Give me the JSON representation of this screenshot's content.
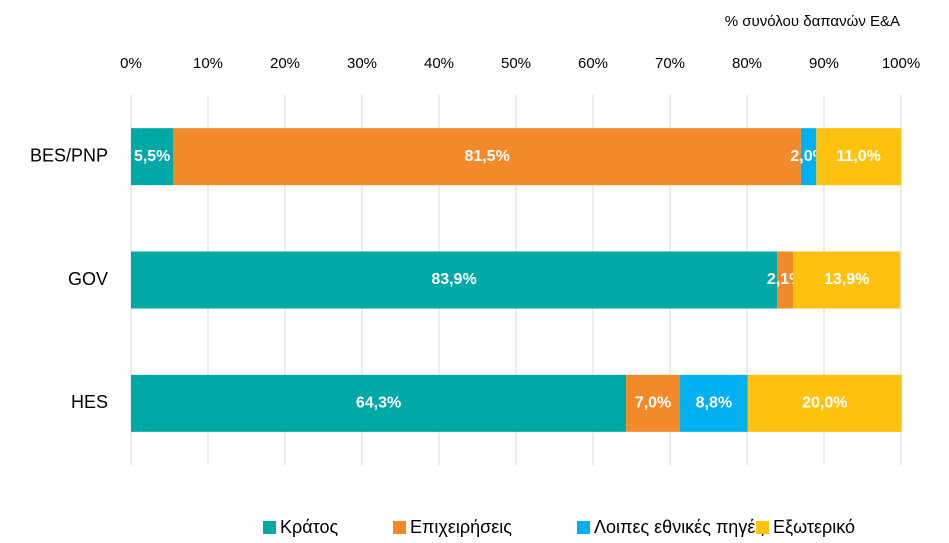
{
  "chart_data": {
    "type": "stacked-barh",
    "x_axis_label": "% συνόλου δαπανών Ε&Α",
    "categories": [
      "BES/PNP",
      "GOV",
      "HES"
    ],
    "series": [
      {
        "name": "Κράτος",
        "color": "#00a9a5",
        "values": [
          5.5,
          83.9,
          64.3
        ],
        "value_labels": [
          "5,5%",
          "83,9%",
          "64,3%"
        ]
      },
      {
        "name": "Επιχειρήσεις",
        "color": "#f28a2a",
        "values": [
          81.5,
          2.1,
          7.0
        ],
        "value_labels": [
          "81,5%",
          "2,1%",
          "7,0%"
        ]
      },
      {
        "name": "Λοιπες εθνικές πηγές",
        "color": "#00b0f0",
        "values": [
          2.0,
          null,
          8.8
        ],
        "value_labels": [
          "2,0%",
          null,
          "8,8%"
        ]
      },
      {
        "name": "Εξωτερικό",
        "color": "#ffc20e",
        "values": [
          11.0,
          13.9,
          20.0
        ],
        "value_labels": [
          "11,0%",
          "13,9%",
          "20,0%"
        ]
      }
    ],
    "xlim": [
      0,
      100
    ],
    "xticks": [
      {
        "value": 0,
        "label": "0%"
      },
      {
        "value": 10,
        "label": "10%"
      },
      {
        "value": 20,
        "label": "20%"
      },
      {
        "value": 30,
        "label": "30%"
      },
      {
        "value": 40,
        "label": "40%"
      },
      {
        "value": 50,
        "label": "50%"
      },
      {
        "value": 60,
        "label": "60%"
      },
      {
        "value": 70,
        "label": "70%"
      },
      {
        "value": 80,
        "label": "80%"
      },
      {
        "value": 90,
        "label": "90%"
      },
      {
        "value": 100,
        "label": "100%"
      }
    ],
    "grid": true,
    "legend": "bottom"
  }
}
